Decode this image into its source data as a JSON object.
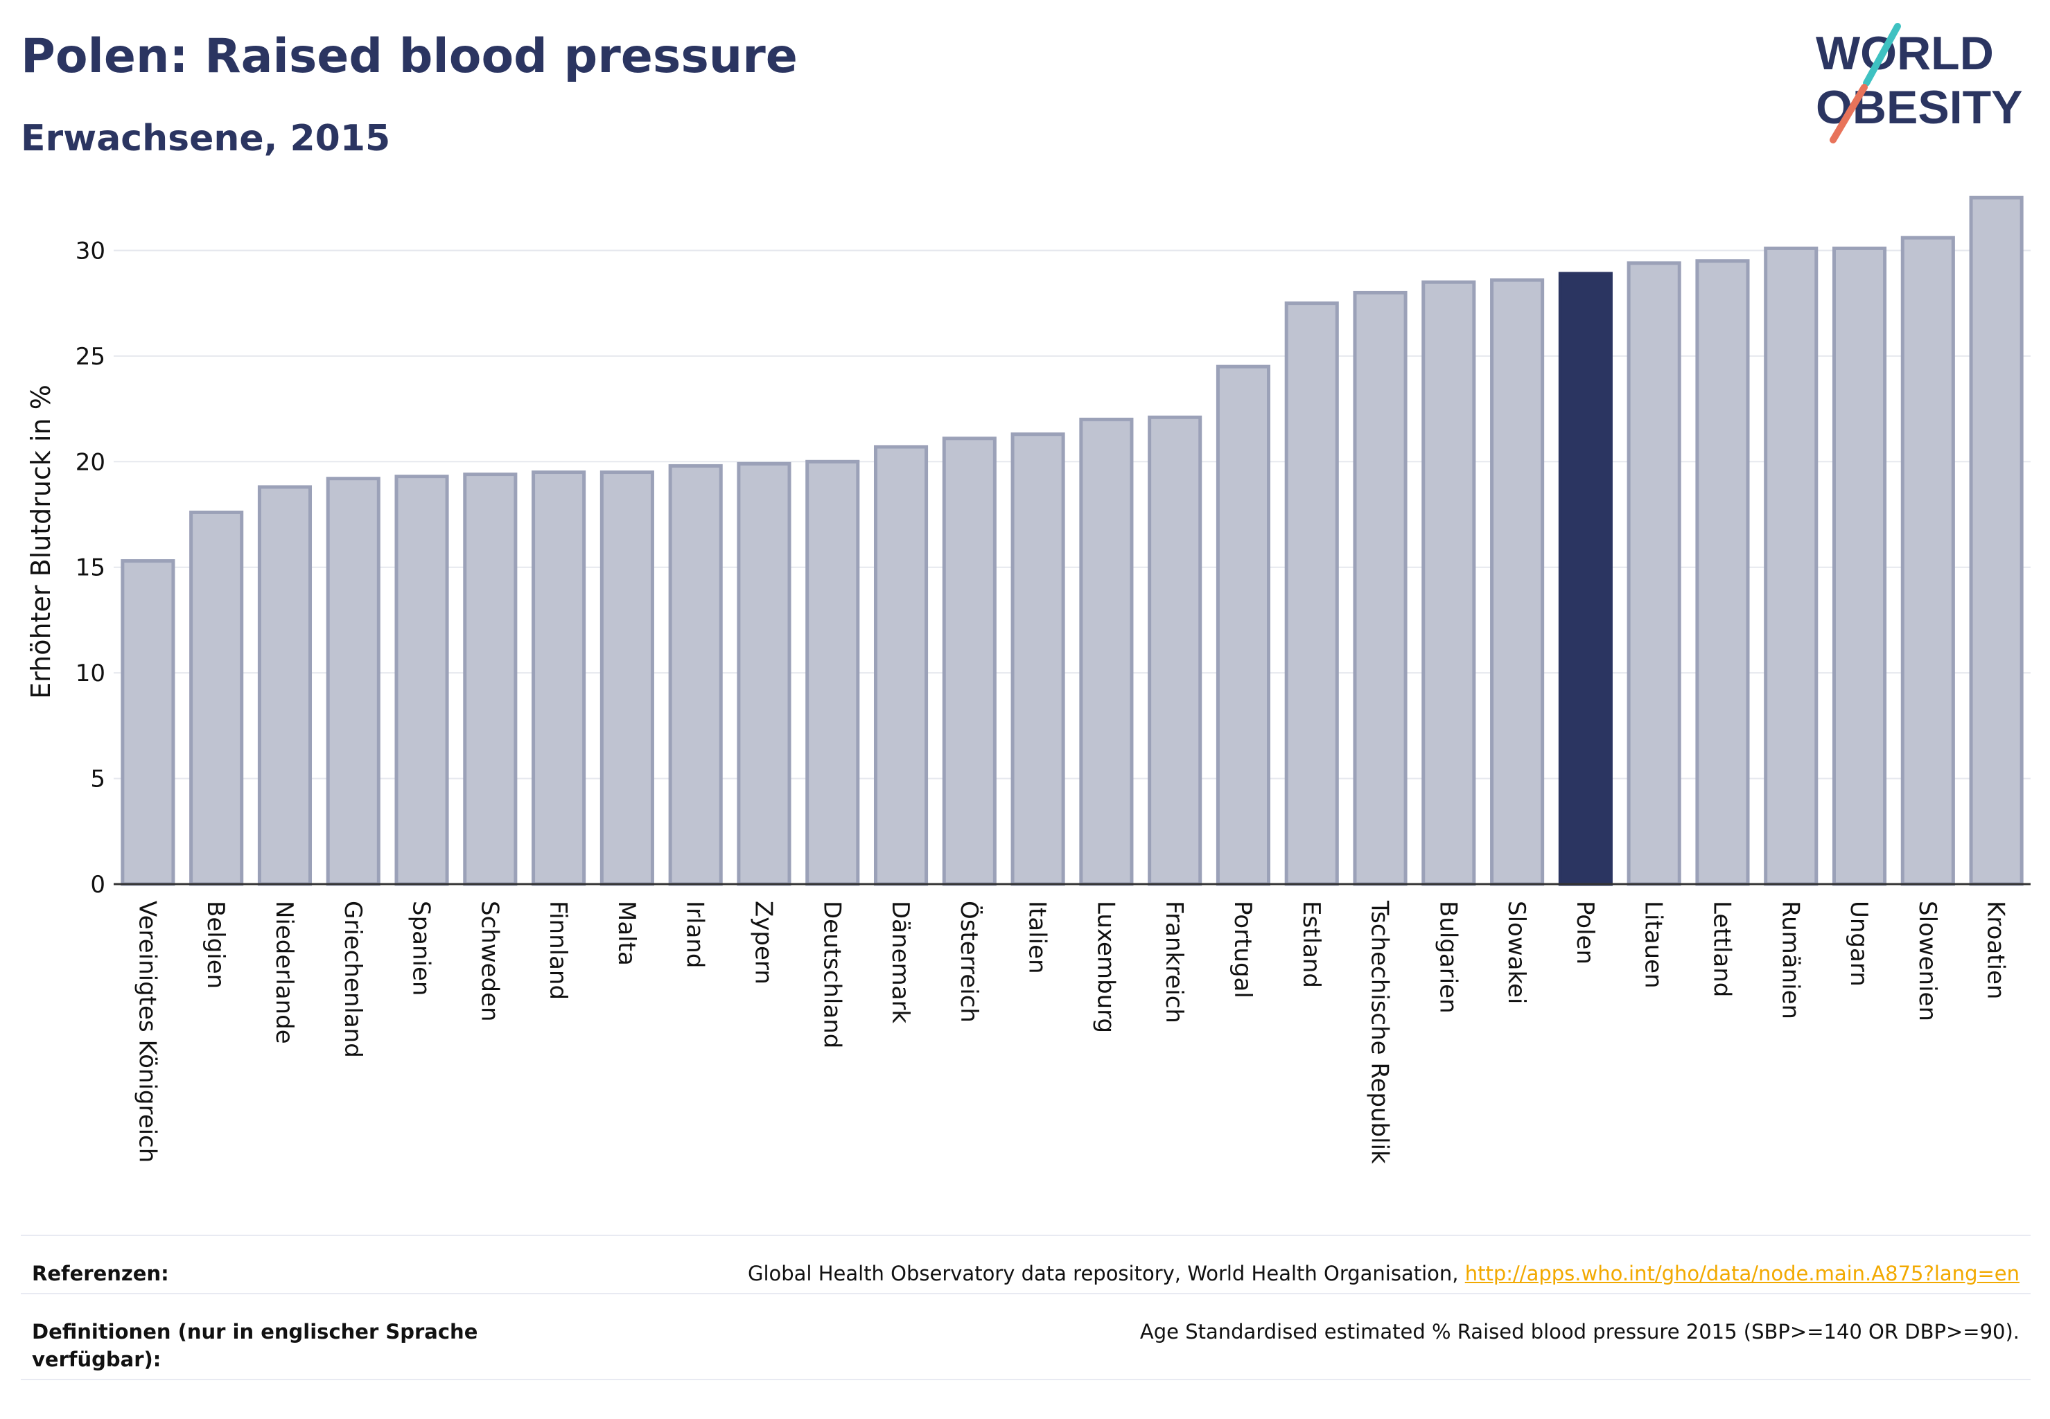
{
  "header": {
    "title": "Polen: Raised blood pressure",
    "subtitle": "Erwachsene, 2015"
  },
  "logo": {
    "line1": "WORLD",
    "line2": "OBESITY",
    "colors": {
      "text": "#2b3561",
      "slash_top": "#3ec1c1",
      "slash_bottom": "#e8735a"
    }
  },
  "colors": {
    "bar": "#bfc3d1",
    "bar_stroke": "#9ba1b8",
    "highlight": "#2b3561",
    "grid": "#e6e8ee",
    "axis": "#333333",
    "link": "#f2a900"
  },
  "chart_data": {
    "type": "bar",
    "title": "Polen: Raised blood pressure",
    "subtitle": "Erwachsene, 2015",
    "ylabel": "Erhöhter Blutdruck in %",
    "xlabel": "",
    "ylim": [
      0,
      33
    ],
    "yticks": [
      0,
      5,
      10,
      15,
      20,
      25,
      30
    ],
    "grid": true,
    "highlight": "Polen",
    "categories": [
      "Vereinigtes Königreich",
      "Belgien",
      "Niederlande",
      "Griechenland",
      "Spanien",
      "Schweden",
      "Finnland",
      "Malta",
      "Irland",
      "Zypern",
      "Deutschland",
      "Dänemark",
      "Österreich",
      "Italien",
      "Luxemburg",
      "Frankreich",
      "Portugal",
      "Estland",
      "Tschechische Republik",
      "Bulgarien",
      "Slowakei",
      "Polen",
      "Litauen",
      "Lettland",
      "Rumänien",
      "Ungarn",
      "Slowenien",
      "Kroatien"
    ],
    "values": [
      15.3,
      17.6,
      18.8,
      19.2,
      19.3,
      19.4,
      19.5,
      19.5,
      19.8,
      19.9,
      20.0,
      20.7,
      21.1,
      21.3,
      22.0,
      22.1,
      24.5,
      27.5,
      28.0,
      28.5,
      28.6,
      28.9,
      29.4,
      29.5,
      30.1,
      30.1,
      30.6,
      32.5
    ]
  },
  "references": {
    "ref_label": "Referenzen:",
    "ref_text": "Global Health Observatory data repository, World Health Organisation, ",
    "ref_link": "http://apps.who.int/gho/data/node.main.A875?lang=en",
    "def_label": "Definitionen (nur in englischer Sprache verfügbar):",
    "def_text": "Age Standardised estimated % Raised blood pressure 2015 (SBP>=140 OR DBP>=90)."
  }
}
